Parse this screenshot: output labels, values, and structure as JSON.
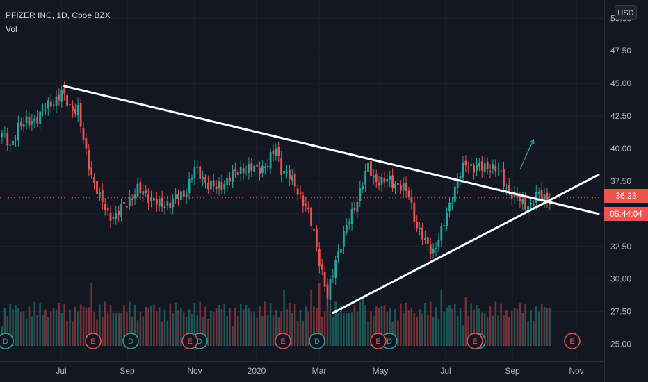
{
  "chart_data": {
    "type": "candlestick",
    "title": "PFIZER INC, 1D, Cboe BZX",
    "sublabel": "Vol",
    "currency": "USD",
    "last_price": "36.23",
    "countdown": "05:44:04",
    "y_ticks": [
      "50.00",
      "47.50",
      "45.00",
      "42.50",
      "40.00",
      "37.50",
      "35.00",
      "32.50",
      "30.00",
      "27.50",
      "25.00"
    ],
    "x_ticks": [
      "Jul",
      "Sep",
      "Nov",
      "2020",
      "Mar",
      "May",
      "Jul",
      "Sep",
      "Nov"
    ],
    "ylim": [
      23.7,
      51.4
    ],
    "earnings_markers": [
      "E",
      "E",
      "E",
      "E",
      "E",
      "E"
    ],
    "dividend_markers": [
      "D",
      "D",
      "D",
      "D",
      "D",
      "D"
    ],
    "anchors": [
      [
        0,
        41.2
      ],
      [
        3,
        40.0
      ],
      [
        6,
        41.8
      ],
      [
        10,
        42.0
      ],
      [
        14,
        42.6
      ],
      [
        18,
        43.5
      ],
      [
        22,
        44.2
      ],
      [
        25,
        43.2
      ],
      [
        28,
        43.0
      ],
      [
        30,
        40.5
      ],
      [
        33,
        38.0
      ],
      [
        36,
        36.2
      ],
      [
        39,
        35.0
      ],
      [
        42,
        34.8
      ],
      [
        46,
        35.9
      ],
      [
        50,
        36.8
      ],
      [
        54,
        36.4
      ],
      [
        58,
        35.6
      ],
      [
        62,
        35.9
      ],
      [
        67,
        36.5
      ],
      [
        71,
        38.4
      ],
      [
        75,
        37.5
      ],
      [
        79,
        36.9
      ],
      [
        84,
        37.8
      ],
      [
        89,
        38.5
      ],
      [
        94,
        38.4
      ],
      [
        98,
        38.8
      ],
      [
        101,
        40.0
      ],
      [
        103,
        38.5
      ],
      [
        106,
        37.8
      ],
      [
        109,
        36.8
      ],
      [
        112,
        35.6
      ],
      [
        115,
        33.5
      ],
      [
        118,
        30.5
      ],
      [
        120,
        28.5
      ],
      [
        123,
        31.5
      ],
      [
        126,
        33.4
      ],
      [
        129,
        35.0
      ],
      [
        132,
        36.8
      ],
      [
        135,
        38.6
      ],
      [
        137,
        37.8
      ],
      [
        140,
        37.4
      ],
      [
        143,
        37.6
      ],
      [
        146,
        37.2
      ],
      [
        150,
        36.5
      ],
      [
        153,
        34.0
      ],
      [
        156,
        32.8
      ],
      [
        159,
        32.2
      ],
      [
        162,
        33.5
      ],
      [
        165,
        35.8
      ],
      [
        168,
        37.5
      ],
      [
        171,
        38.9
      ],
      [
        174,
        38.6
      ],
      [
        177,
        38.5
      ],
      [
        180,
        38.7
      ],
      [
        183,
        38.3
      ],
      [
        186,
        37.0
      ],
      [
        189,
        36.3
      ],
      [
        192,
        35.8
      ],
      [
        195,
        35.7
      ],
      [
        198,
        36.5
      ],
      [
        201,
        36.2
      ],
      [
        202,
        36.23
      ]
    ],
    "trendlines": [
      {
        "name": "descending",
        "from": [
          23,
          44.8
        ],
        "to": [
          220,
          35.0
        ]
      },
      {
        "name": "ascending",
        "from": [
          122,
          27.4
        ],
        "to": [
          220,
          38.0
        ]
      }
    ],
    "arrow": {
      "from": [
        191,
        38.4
      ],
      "to": [
        196,
        40.7
      ]
    }
  }
}
